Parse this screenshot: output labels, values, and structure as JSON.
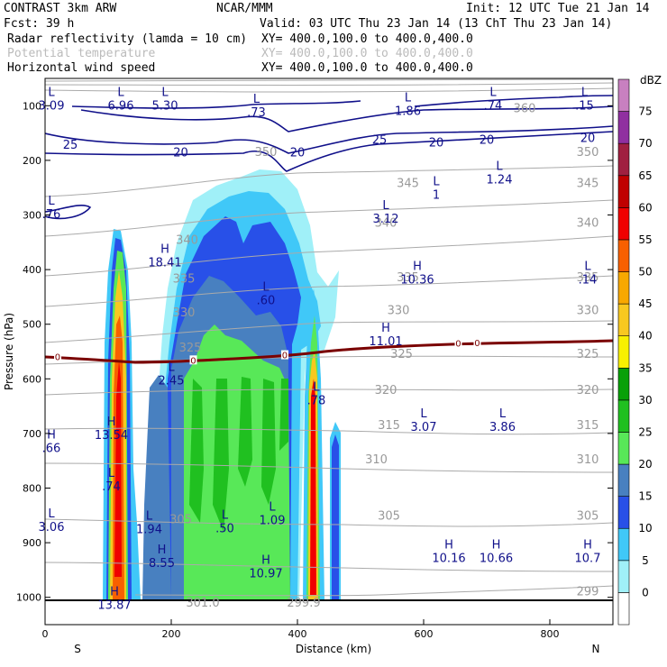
{
  "header": {
    "line1_left": "CONTRAST  3km ARW",
    "line1_mid": "NCAR/MMM",
    "line1_right": "Init: 12 UTC Tue 21 Jan 14",
    "line2_left": "Fcst:   39 h",
    "line2_right": "Valid: 03 UTC Thu 23 Jan 14 (13 ChT Thu 23 Jan 14)",
    "fields": [
      {
        "name": "Radar reflectivity (lamda = 10 cm)",
        "xy": "XY= 400.0,100.0 to 400.0,400.0",
        "color": "#000000"
      },
      {
        "name": "Potential temperature",
        "xy": "XY= 400.0,100.0 to 400.0,400.0",
        "color": "#bbbbbb"
      },
      {
        "name": "Horizontal wind speed",
        "xy": "XY= 400.0,100.0 to 400.0,400.0",
        "color": "#000000"
      }
    ]
  },
  "chart_data": {
    "type": "cross-section",
    "xlabel": "Distance (km)",
    "ylabel": "Pressure (hPa)",
    "xlim": [
      0,
      900
    ],
    "ylim": [
      1050,
      50
    ],
    "x_ticks": [
      0,
      200,
      400,
      600,
      800
    ],
    "y_ticks": [
      100,
      200,
      300,
      400,
      500,
      600,
      700,
      800,
      900,
      1000
    ],
    "x_end_labels": {
      "left": "S",
      "right": "N"
    },
    "colorbar": {
      "unit": "dBZ",
      "levels": [
        0,
        5,
        10,
        15,
        20,
        25,
        30,
        35,
        40,
        45,
        50,
        55,
        60,
        65,
        70,
        75
      ],
      "colors": [
        "#ffffff",
        "#a0f0f8",
        "#40c8f8",
        "#2850e8",
        "#4880c0",
        "#58e858",
        "#20c020",
        "#08a008",
        "#f8f000",
        "#f8c820",
        "#f8a800",
        "#f86000",
        "#f00000",
        "#c00000",
        "#a02040",
        "#9030a0",
        "#c880c0"
      ]
    },
    "theta_contours": [
      {
        "value": 299,
        "label": "299"
      },
      {
        "value": 301,
        "label": "301.0"
      },
      {
        "value": 305,
        "label": "305"
      },
      {
        "value": 310,
        "label": "310"
      },
      {
        "value": 315,
        "label": "315"
      },
      {
        "value": 320,
        "label": "320"
      },
      {
        "value": 325,
        "label": "325"
      },
      {
        "value": 330,
        "label": "330"
      },
      {
        "value": 335,
        "label": "335"
      },
      {
        "value": 340,
        "label": "340"
      },
      {
        "value": 345,
        "label": "345"
      },
      {
        "value": 350,
        "label": "350"
      },
      {
        "value": 360,
        "label": "360"
      }
    ],
    "theta_labels_at": [
      {
        "t": "350",
        "x": 350,
        "p": 185
      },
      {
        "t": "350",
        "x": 860,
        "p": 185
      },
      {
        "t": "345",
        "x": 575,
        "p": 242
      },
      {
        "t": "345",
        "x": 860,
        "p": 242
      },
      {
        "t": "340",
        "x": 540,
        "p": 315
      },
      {
        "t": "340",
        "x": 860,
        "p": 315
      },
      {
        "t": "335",
        "x": 575,
        "p": 415
      },
      {
        "t": "335",
        "x": 860,
        "p": 415
      },
      {
        "t": "330",
        "x": 560,
        "p": 475
      },
      {
        "t": "330",
        "x": 860,
        "p": 475
      },
      {
        "t": "325",
        "x": 565,
        "p": 555
      },
      {
        "t": "325",
        "x": 860,
        "p": 555
      },
      {
        "t": "320",
        "x": 540,
        "p": 621
      },
      {
        "t": "320",
        "x": 860,
        "p": 621
      },
      {
        "t": "315",
        "x": 545,
        "p": 685
      },
      {
        "t": "315",
        "x": 860,
        "p": 685
      },
      {
        "t": "310",
        "x": 525,
        "p": 748
      },
      {
        "t": "310",
        "x": 860,
        "p": 748
      },
      {
        "t": "305",
        "x": 545,
        "p": 851
      },
      {
        "t": "305",
        "x": 860,
        "p": 851
      },
      {
        "t": "299",
        "x": 860,
        "p": 990
      },
      {
        "t": "301.0",
        "x": 250,
        "p": 1010
      },
      {
        "t": "299.9",
        "x": 410,
        "p": 1010
      },
      {
        "t": "360",
        "x": 760,
        "p": 105
      },
      {
        "t": "335",
        "x": 220,
        "p": 417
      },
      {
        "t": "330",
        "x": 220,
        "p": 479
      },
      {
        "t": "325",
        "x": 230,
        "p": 543
      },
      {
        "t": "340",
        "x": 225,
        "p": 346
      },
      {
        "t": "305",
        "x": 215,
        "p": 858
      }
    ],
    "wind_speed_labels": [
      {
        "t": "25",
        "x": 40,
        "p": 172
      },
      {
        "t": "20",
        "x": 215,
        "p": 186
      },
      {
        "t": "20",
        "x": 400,
        "p": 186
      },
      {
        "t": "25",
        "x": 530,
        "p": 163
      },
      {
        "t": "20",
        "x": 620,
        "p": 168
      },
      {
        "t": "20",
        "x": 700,
        "p": 163
      },
      {
        "t": "20",
        "x": 860,
        "p": 160
      }
    ],
    "zero_isotherm_label": "0",
    "zero_isotherm_labels_x": [
      20,
      235,
      380,
      655,
      685
    ],
    "extrema": [
      {
        "type": "L",
        "value": "3.09",
        "x": 10,
        "p": 89
      },
      {
        "type": "L",
        "value": "6.96",
        "x": 120,
        "p": 89
      },
      {
        "type": "L",
        "value": "5.30",
        "x": 190,
        "p": 89
      },
      {
        "type": "L",
        "value": ".73",
        "x": 335,
        "p": 101
      },
      {
        "type": "L",
        "value": "1.86",
        "x": 575,
        "p": 99
      },
      {
        "type": "L",
        "value": ".74",
        "x": 710,
        "p": 89
      },
      {
        "type": "L",
        "value": ".15",
        "x": 855,
        "p": 89
      },
      {
        "type": "L",
        "value": "1.24",
        "x": 720,
        "p": 224
      },
      {
        "type": "L",
        "value": "1",
        "x": 620,
        "p": 252
      },
      {
        "type": "L",
        "value": "3.12",
        "x": 540,
        "p": 296
      },
      {
        "type": "L",
        "value": ".76",
        "x": 10,
        "p": 288
      },
      {
        "type": "H",
        "value": "18.41",
        "x": 190,
        "p": 376
      },
      {
        "type": "L",
        "value": ".60",
        "x": 350,
        "p": 445
      },
      {
        "type": "H",
        "value": "10.36",
        "x": 590,
        "p": 407
      },
      {
        "type": "L",
        "value": ".14",
        "x": 860,
        "p": 407
      },
      {
        "type": "H",
        "value": "11.01",
        "x": 540,
        "p": 520
      },
      {
        "type": "L",
        "value": "2.45",
        "x": 200,
        "p": 592
      },
      {
        "type": "L",
        "value": ".78",
        "x": 430,
        "p": 628
      },
      {
        "type": "H",
        "value": "13.54",
        "x": 105,
        "p": 692
      },
      {
        "type": "L",
        "value": "3.07",
        "x": 600,
        "p": 677
      },
      {
        "type": "L",
        "value": "3.86",
        "x": 725,
        "p": 677
      },
      {
        "type": "H",
        "value": ".66",
        "x": 10,
        "p": 716
      },
      {
        "type": "L",
        "value": ".74",
        "x": 105,
        "p": 786
      },
      {
        "type": "L",
        "value": "1.09",
        "x": 360,
        "p": 848
      },
      {
        "type": "L",
        "value": "3.06",
        "x": 10,
        "p": 860
      },
      {
        "type": "L",
        "value": "1.94",
        "x": 165,
        "p": 864
      },
      {
        "type": "L",
        "value": ".50",
        "x": 285,
        "p": 863
      },
      {
        "type": "H",
        "value": "8.55",
        "x": 185,
        "p": 926
      },
      {
        "type": "H",
        "value": "10.97",
        "x": 350,
        "p": 945
      },
      {
        "type": "H",
        "value": "10.16",
        "x": 640,
        "p": 917
      },
      {
        "type": "H",
        "value": "10.66",
        "x": 715,
        "p": 917
      },
      {
        "type": "H",
        "value": "10.7",
        "x": 860,
        "p": 917
      },
      {
        "type": "H",
        "value": "13.87",
        "x": 110,
        "p": 1003
      }
    ]
  }
}
